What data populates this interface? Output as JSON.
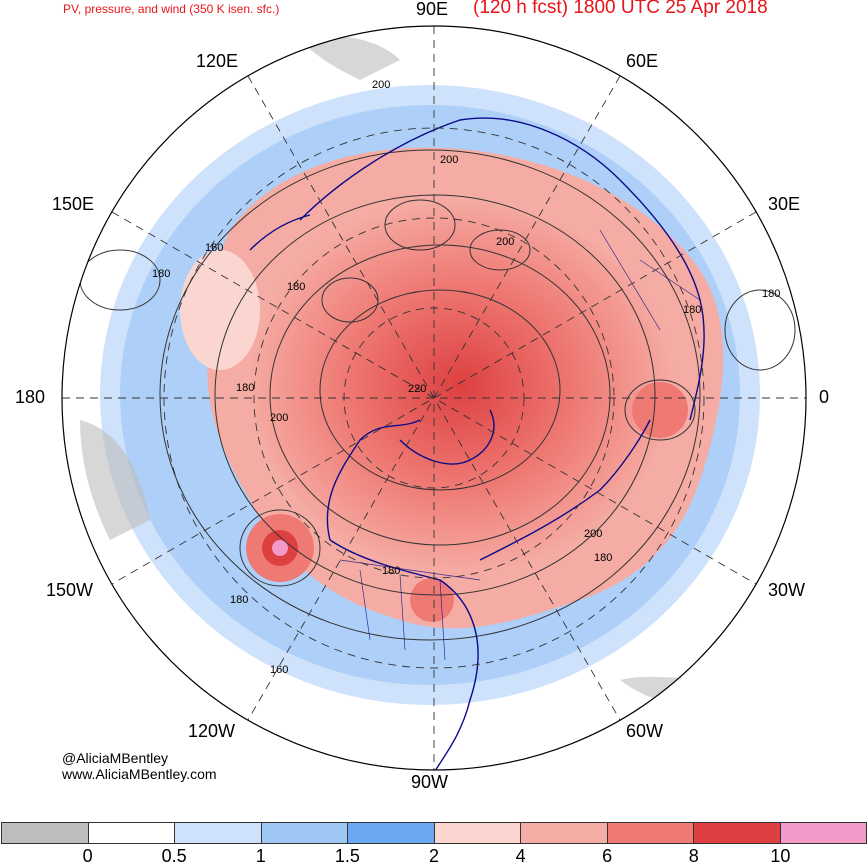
{
  "header": {
    "product": "PV, pressure, and wind (350 K isen. sfc.)",
    "forecast": "(120 h fcst) 1800 UTC 25 Apr 2018"
  },
  "longitudes": {
    "lon_90E": "90E",
    "lon_60E": "60E",
    "lon_120E": "120E",
    "lon_30E": "30E",
    "lon_150E": "150E",
    "lon_180": "180",
    "lon_0": "0",
    "lon_150W": "150W",
    "lon_30W": "30W",
    "lon_120W": "120W",
    "lon_60W": "60W",
    "lon_90W": "90W"
  },
  "contour_labels": [
    "200",
    "200",
    "200",
    "160",
    "180",
    "180",
    "180",
    "180",
    "220",
    "200",
    "200",
    "180",
    "180",
    "180",
    "180",
    "160"
  ],
  "credits": {
    "handle": "@AliciaMBentley",
    "website": "www.AliciaMBentley.com"
  },
  "colorbar": {
    "colors": [
      "#bdbdbd",
      "#ffffff",
      "#cfe2fb",
      "#9ec7f6",
      "#6aa9f0",
      "#fbd6d0",
      "#f5aca4",
      "#ef7a74",
      "#dd4040",
      "#f49ac8"
    ],
    "ticks": [
      "0",
      "0.5",
      "1",
      "1.5",
      "2",
      "4",
      "6",
      "8",
      "10"
    ]
  }
}
